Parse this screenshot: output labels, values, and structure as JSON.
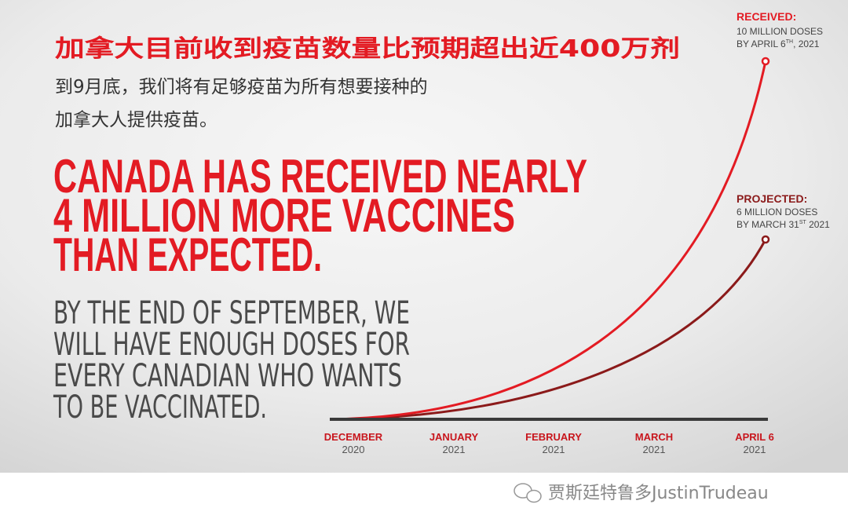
{
  "header": {
    "title_zh": "加拿大目前收到疫苗数量比预期超出近400万剂",
    "subtitle_zh": [
      "到9月底，我们将有足够疫苗为所有想要接种的",
      "加拿大人提供疫苗。"
    ]
  },
  "headline": [
    "CANADA HAS RECEIVED NEARLY",
    "4 MILLION MORE VACCINES",
    "THAN EXPECTED."
  ],
  "body": [
    "BY THE END OF SEPTEMBER, WE",
    "WILL HAVE ENOUGH DOSES FOR",
    "EVERY CANADIAN WHO WANTS",
    "TO BE VACCINATED."
  ],
  "annotations": {
    "received": {
      "label": "RECEIVED:",
      "line1": "10 MILLION DOSES",
      "line2_pre": "BY APRIL 6",
      "line2_sup": "TH",
      "line2_post": ", 2021"
    },
    "projected": {
      "label": "PROJECTED:",
      "line1": "6 MILLION DOSES",
      "line2_pre": "BY MARCH 31",
      "line2_sup": "ST",
      "line2_post": " 2021"
    }
  },
  "axis_labels": [
    {
      "month": "DECEMBER",
      "year": "2020"
    },
    {
      "month": "JANUARY",
      "year": "2021"
    },
    {
      "month": "FEBRUARY",
      "year": "2021"
    },
    {
      "month": "MARCH",
      "year": "2021"
    },
    {
      "month": "APRIL 6",
      "year": "2021"
    }
  ],
  "watermark": "贾斯廷特鲁多JustinTrudeau"
}
